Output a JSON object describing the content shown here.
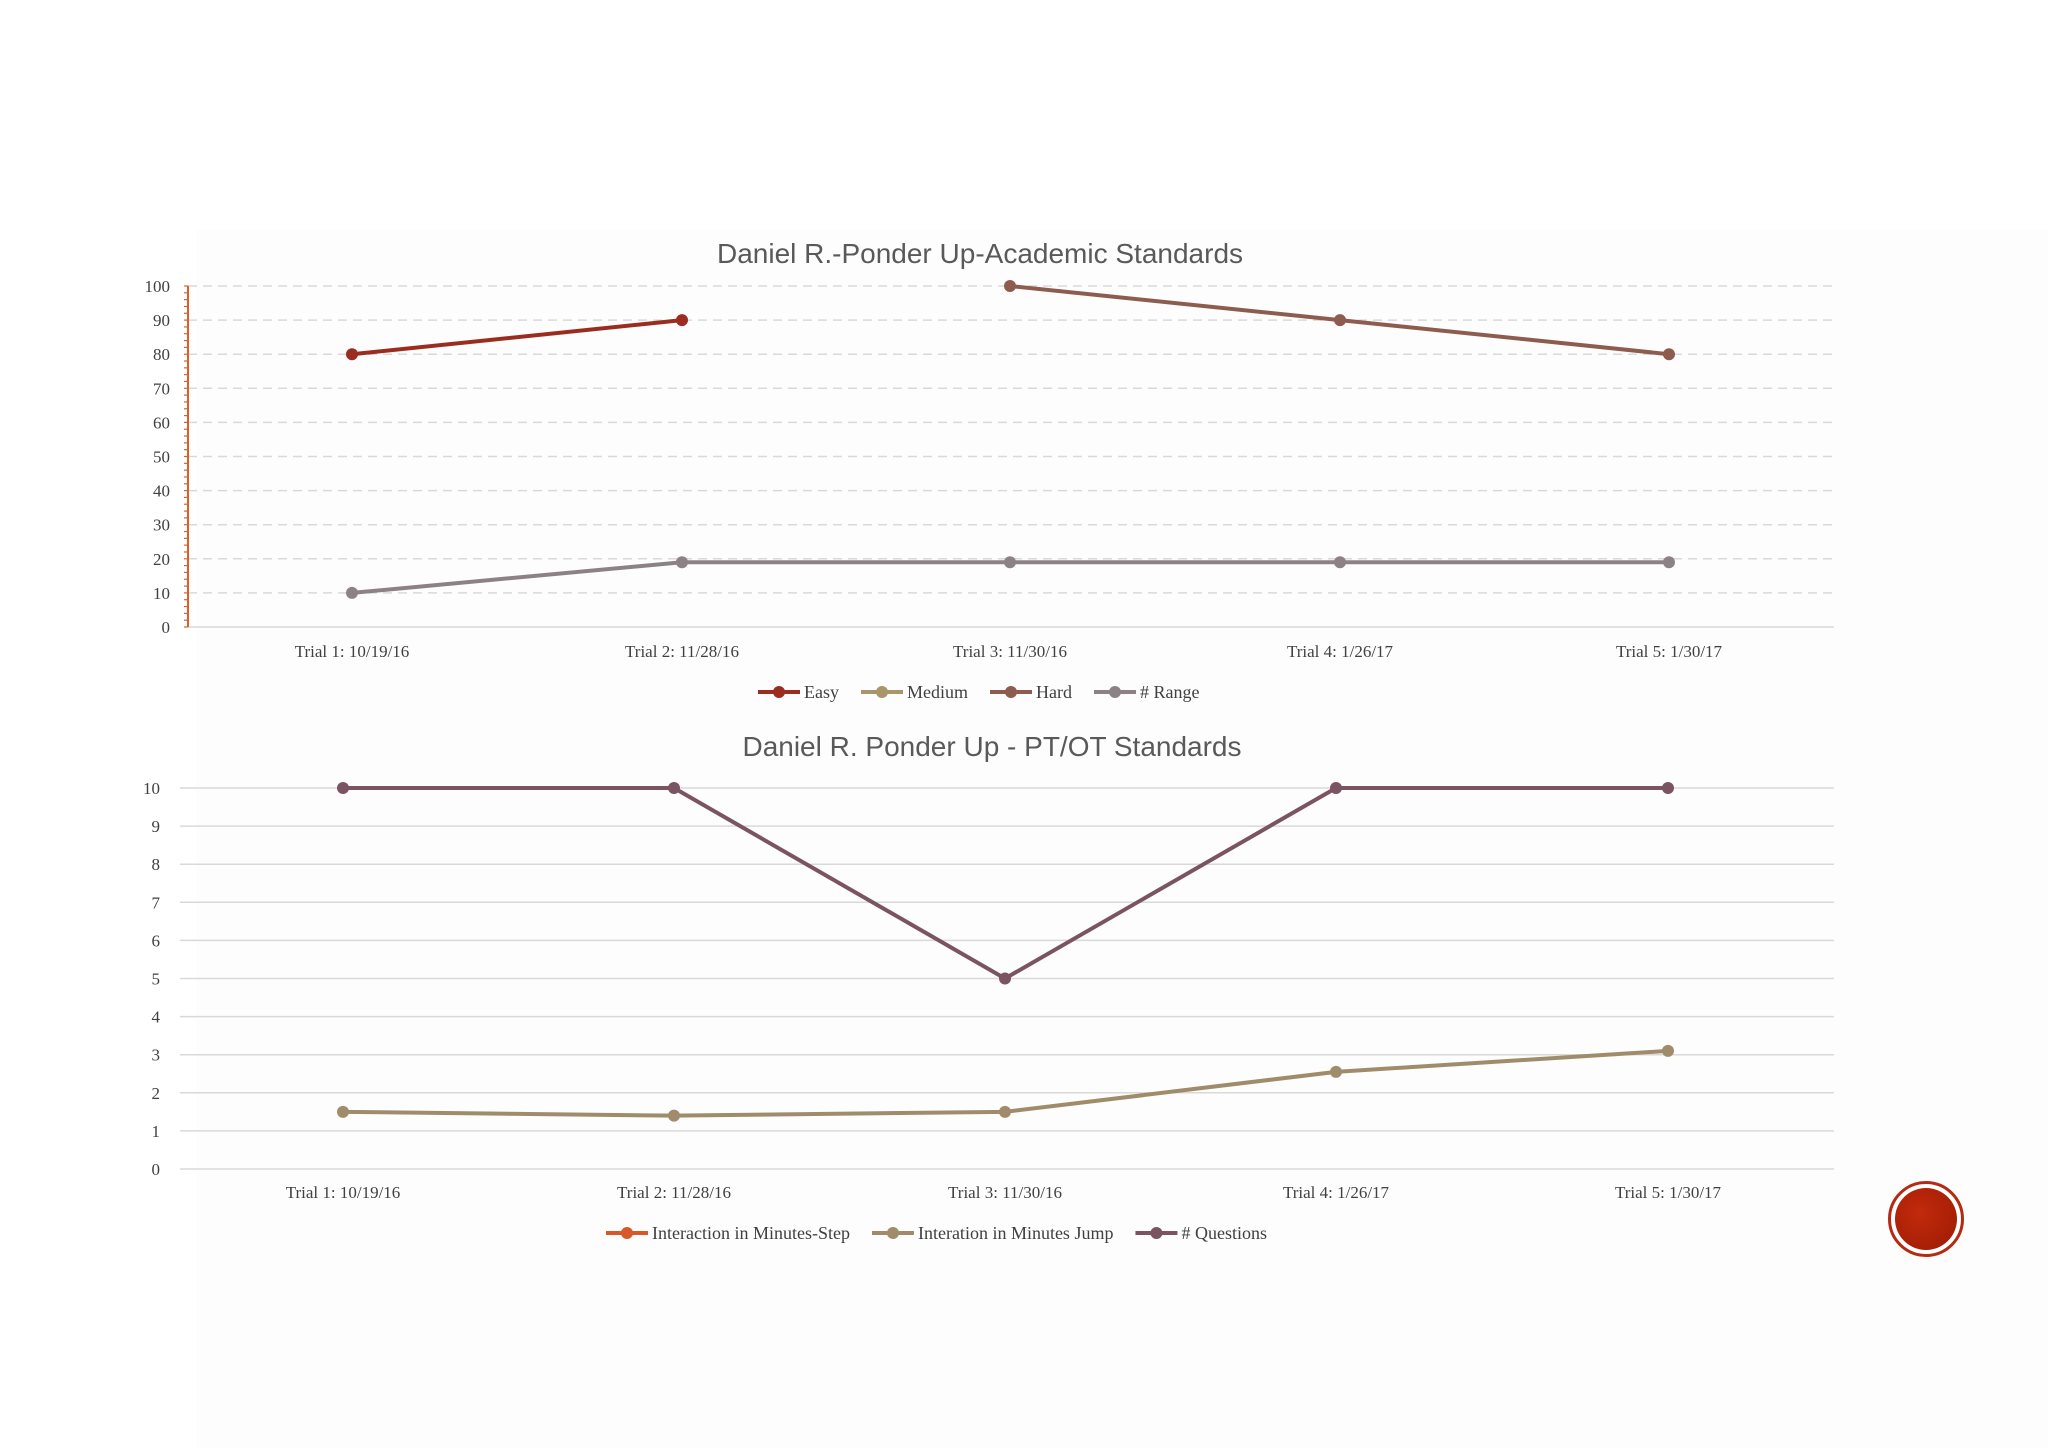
{
  "chart_data": [
    {
      "type": "line",
      "title": "Daniel R.-Ponder Up-Academic Standards",
      "categories": [
        "Trial 1: 10/19/16",
        "Trial 2: 11/28/16",
        "Trial 3: 11/30/16",
        "Trial 4: 1/26/17",
        "Trial 5: 1/30/17"
      ],
      "ylim": [
        0,
        100
      ],
      "yticks": [
        "0",
        "10",
        "20",
        "30",
        "40",
        "50",
        "60",
        "70",
        "80",
        "90",
        "100"
      ],
      "grid": "dashed horizontal",
      "legend": "bottom-center",
      "series": [
        {
          "name": "Easy",
          "color": "#9b2d20",
          "values": [
            80,
            90,
            null,
            null,
            null
          ]
        },
        {
          "name": "Medium",
          "color": "#a8966a",
          "values": [
            null,
            null,
            null,
            null,
            null
          ]
        },
        {
          "name": "Hard",
          "color": "#8e5c4f",
          "values": [
            null,
            null,
            100,
            90,
            80
          ]
        },
        {
          "name": "# Range",
          "color": "#8c8285",
          "values": [
            10,
            19,
            19,
            19,
            19
          ]
        }
      ]
    },
    {
      "type": "line",
      "title": "Daniel R. Ponder Up - PT/OT Standards",
      "categories": [
        "Trial 1: 10/19/16",
        "Trial 2: 11/28/16",
        "Trial 3: 11/30/16",
        "Trial 4: 1/26/17",
        "Trial 5: 1/30/17"
      ],
      "ylim": [
        0,
        10
      ],
      "yticks": [
        "0",
        "1",
        "2",
        "3",
        "4",
        "5",
        "6",
        "7",
        "8",
        "9",
        "10"
      ],
      "grid": "solid horizontal",
      "legend": "bottom-center",
      "series": [
        {
          "name": "Interaction in Minutes-Step",
          "color": "#d7582a",
          "values": [
            null,
            null,
            null,
            null,
            null
          ]
        },
        {
          "name": "Interation in Minutes Jump",
          "color": "#a08c6a",
          "values": [
            1.5,
            1.4,
            1.5,
            2.55,
            3.1
          ]
        },
        {
          "name": "# Questions",
          "color": "#7a5462",
          "values": [
            10,
            10,
            5,
            10,
            10
          ]
        }
      ]
    }
  ]
}
